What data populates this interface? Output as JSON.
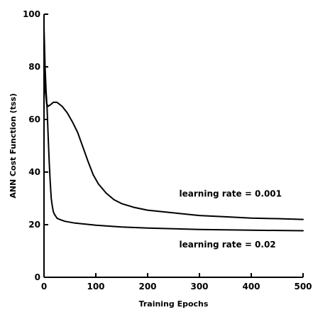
{
  "chart_data": {
    "type": "line",
    "title": "",
    "xlabel": "Training Epochs",
    "ylabel": "ANN Cost Function (tss)",
    "xlim": [
      0,
      500
    ],
    "ylim": [
      0,
      100
    ],
    "x_ticks": [
      0,
      100,
      200,
      300,
      400,
      500
    ],
    "y_ticks": [
      0,
      20,
      40,
      60,
      80,
      100
    ],
    "grid": false,
    "legend": "none",
    "line_color": "#000000",
    "series": [
      {
        "x": [
          0,
          2,
          5,
          8,
          12,
          18,
          25,
          35,
          45,
          55,
          65,
          75,
          85,
          95,
          105,
          120,
          135,
          150,
          175,
          200,
          250,
          300,
          350,
          400,
          450,
          500
        ],
        "y": [
          86,
          72,
          66,
          65,
          65.5,
          66.5,
          66.5,
          65,
          62.5,
          59,
          55,
          49.5,
          44,
          39,
          35.5,
          32,
          29.5,
          28,
          26.5,
          25.5,
          24.5,
          23.5,
          23,
          22.5,
          22.3,
          22
        ]
      },
      {
        "x": [
          0,
          2,
          4,
          6,
          8,
          10,
          12,
          14,
          16,
          18,
          20,
          25,
          30,
          40,
          60,
          100,
          150,
          200,
          300,
          400,
          500
        ],
        "y": [
          95,
          80,
          71,
          64,
          54,
          44,
          36,
          30,
          27,
          25,
          24,
          22.5,
          22,
          21.3,
          20.6,
          19.8,
          19.1,
          18.7,
          18.2,
          17.9,
          17.7
        ]
      }
    ],
    "annotations": [
      {
        "text": "learning rate = 0.001",
        "x": 261,
        "y": 30.7
      },
      {
        "text": "learning rate = 0.02",
        "x": 261,
        "y": 11.3
      }
    ]
  }
}
